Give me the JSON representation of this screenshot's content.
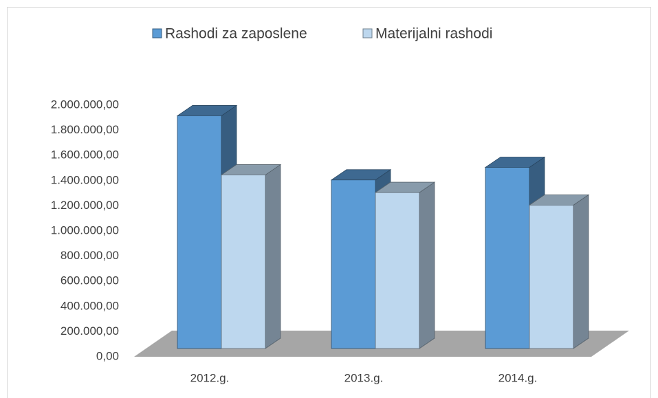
{
  "chart_data": {
    "type": "bar3d",
    "categories": [
      "2012.g.",
      "2013.g.",
      "2014.g."
    ],
    "series": [
      {
        "name": "Rashodi za zaposlene",
        "color": "#5b9bd5",
        "values": [
          1850000,
          1340000,
          1440000
        ]
      },
      {
        "name": "Materijalni rashodi",
        "color": "#bdd7ee",
        "values": [
          1380000,
          1240000,
          1140000
        ]
      }
    ],
    "ylim": [
      0,
      2000000
    ],
    "yticks": [
      {
        "value": 0,
        "label": "0,00"
      },
      {
        "value": 200000,
        "label": "200.000,00"
      },
      {
        "value": 400000,
        "label": "400.000,00"
      },
      {
        "value": 600000,
        "label": "600.000,00"
      },
      {
        "value": 800000,
        "label": "800.000,00"
      },
      {
        "value": 1000000,
        "label": "1.000.000,00"
      },
      {
        "value": 1200000,
        "label": "1.200.000,00"
      },
      {
        "value": 1400000,
        "label": "1.400.000,00"
      },
      {
        "value": 1600000,
        "label": "1.600.000,00"
      },
      {
        "value": 1800000,
        "label": "1.800.000,00"
      },
      {
        "value": 2000000,
        "label": "2.000.000,00"
      }
    ],
    "legend": "top"
  }
}
